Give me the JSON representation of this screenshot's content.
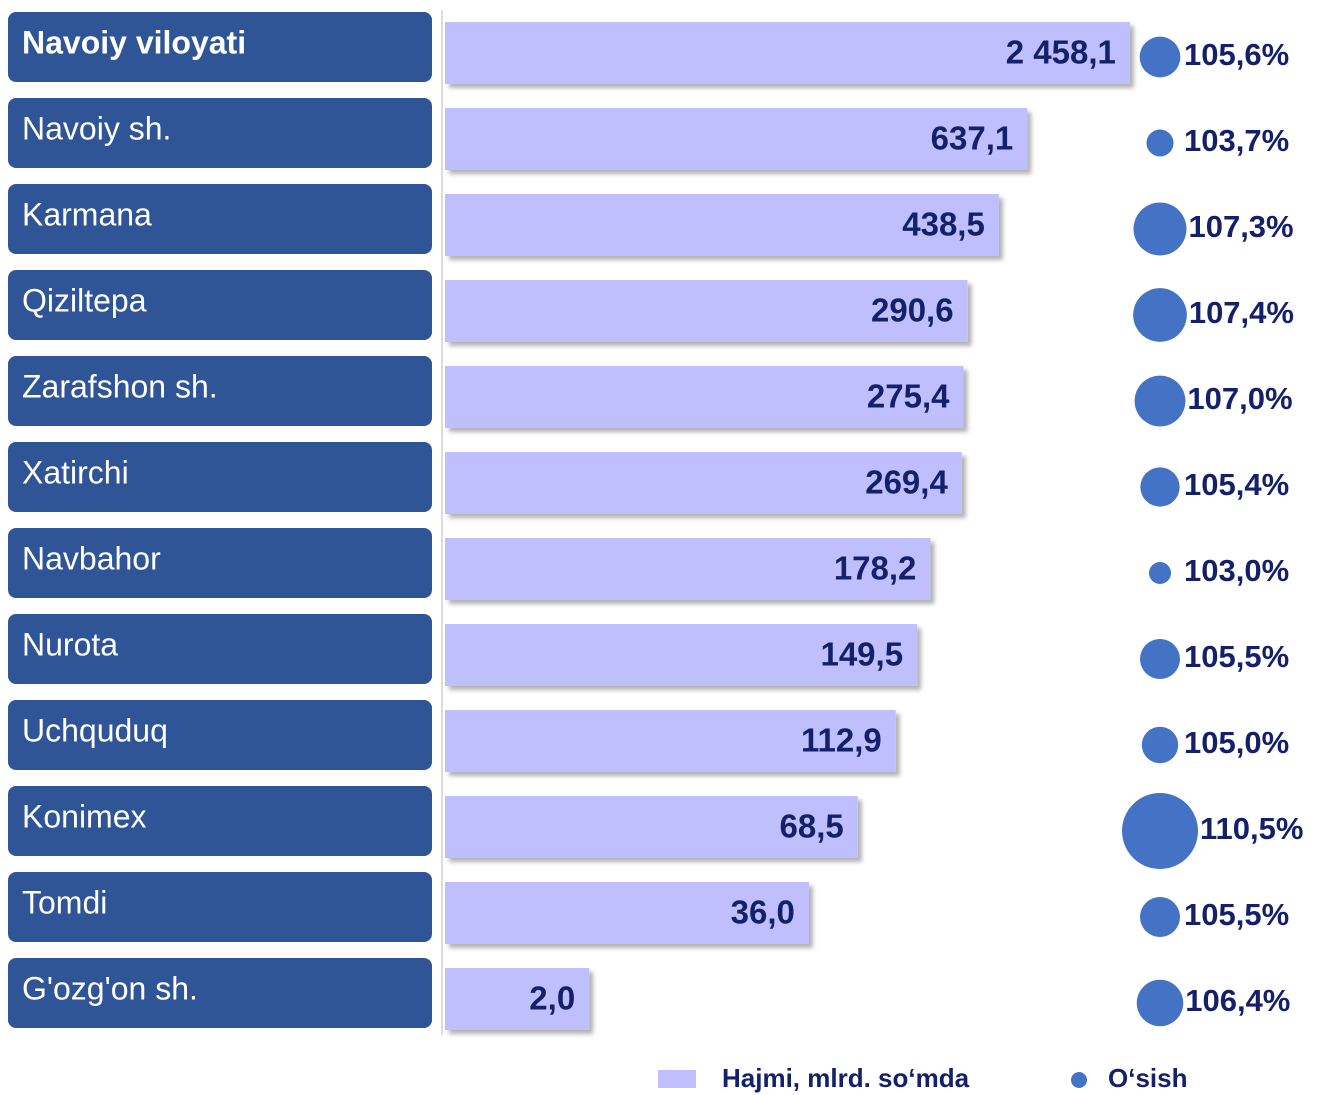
{
  "chart_data": {
    "type": "bar",
    "categories": [
      "Navoiy viloyati",
      "Navoiy sh.",
      "Karmana",
      "Qiziltepa",
      "Zarafshon sh.",
      "Xatirchi",
      "Navbahor",
      "Nurota",
      "Uchquduq",
      "Konimex",
      "Tomdi",
      "G'ozg'on sh."
    ],
    "series": [
      {
        "name": "Hajmi, mlrd. so‘mda",
        "color": "#bfbffd",
        "values": [
          2458.1,
          637.1,
          438.5,
          290.6,
          275.4,
          269.4,
          178.2,
          149.5,
          112.9,
          68.5,
          36.0,
          2.0
        ],
        "value_labels": [
          "2 458,1",
          "637,1",
          "438,5",
          "290,6",
          "275,4",
          "269,4",
          "178,2",
          "149,5",
          "112,9",
          "68,5",
          "36,0",
          "2,0"
        ]
      },
      {
        "name": "O‘sish",
        "color": "#4472c4",
        "values": [
          105.6,
          103.7,
          107.3,
          107.4,
          107.0,
          105.4,
          103.0,
          105.5,
          105.0,
          110.5,
          105.5,
          106.4
        ],
        "value_labels": [
          "105,6%",
          "103,7%",
          "107,3%",
          "107,4%",
          "107,0%",
          "105,4%",
          "103,0%",
          "105,5%",
          "105,0%",
          "110,5%",
          "105,5%",
          "106,4%"
        ]
      }
    ],
    "log_scale": true,
    "xlim": [
      0.3,
      3000
    ]
  }
}
